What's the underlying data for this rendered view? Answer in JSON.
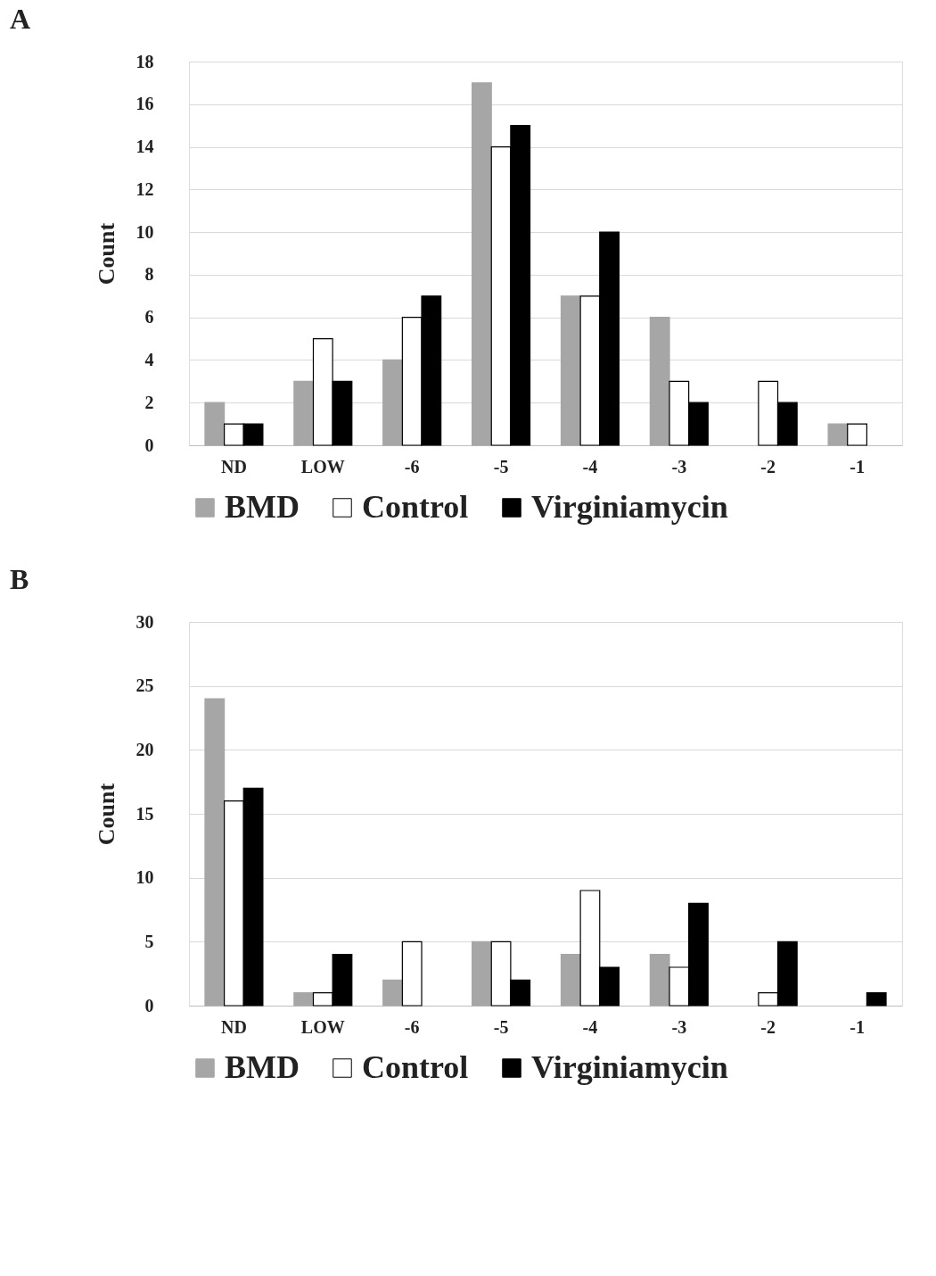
{
  "chart_data": [
    {
      "type": "bar",
      "title": "A",
      "ylabel": "Count",
      "categories": [
        "ND",
        "LOW",
        "-6",
        "-5",
        "-4",
        "-3",
        "-2",
        "-1"
      ],
      "ylim": [
        0,
        18
      ],
      "yticks": [
        0,
        2,
        4,
        6,
        8,
        10,
        12,
        14,
        16,
        18
      ],
      "grid": "y",
      "legend": "bottom",
      "series": [
        {
          "name": "BMD",
          "color": "#a6a6a6",
          "values": [
            2,
            3,
            4,
            17,
            7,
            6,
            0,
            1
          ]
        },
        {
          "name": "Control",
          "color": "#ffffff",
          "values": [
            1,
            5,
            6,
            14,
            7,
            3,
            3,
            1
          ]
        },
        {
          "name": "Virginiamycin",
          "color": "#000000",
          "values": [
            1,
            3,
            7,
            15,
            10,
            2,
            2,
            0
          ]
        }
      ]
    },
    {
      "type": "bar",
      "title": "B",
      "ylabel": "Count",
      "categories": [
        "ND",
        "LOW",
        "-6",
        "-5",
        "-4",
        "-3",
        "-2",
        "-1"
      ],
      "ylim": [
        0,
        30
      ],
      "yticks": [
        0,
        5,
        10,
        15,
        20,
        25,
        30
      ],
      "grid": "y",
      "legend": "bottom",
      "series": [
        {
          "name": "BMD",
          "color": "#a6a6a6",
          "values": [
            24,
            1,
            2,
            5,
            4,
            4,
            0,
            0
          ]
        },
        {
          "name": "Control",
          "color": "#ffffff",
          "values": [
            16,
            1,
            5,
            5,
            9,
            3,
            1,
            0
          ]
        },
        {
          "name": "Virginiamycin",
          "color": "#000000",
          "values": [
            17,
            4,
            0,
            2,
            3,
            8,
            5,
            1
          ]
        }
      ]
    }
  ]
}
